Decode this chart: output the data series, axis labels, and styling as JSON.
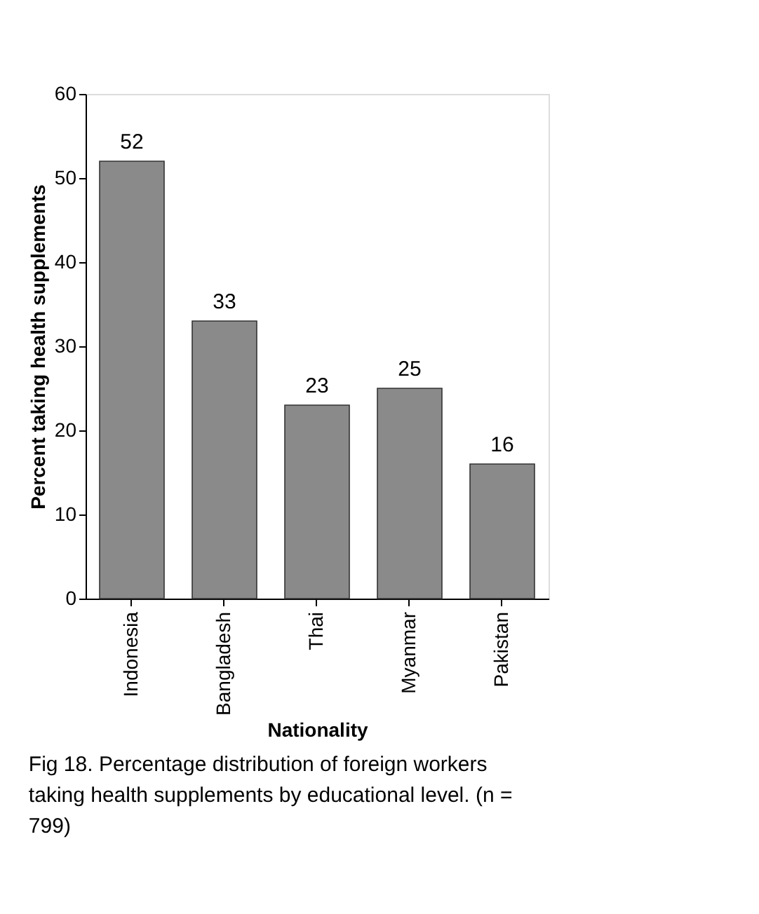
{
  "chart_data": {
    "type": "bar",
    "xlabel": "Nationality",
    "ylabel": "Percent taking health supplements",
    "categories": [
      "Indonesia",
      "Bangladesh",
      "Thai",
      "Myanmar",
      "Pakistan"
    ],
    "values": [
      52,
      33,
      23,
      25,
      16
    ],
    "color": "#8a8a8a",
    "ylim": [
      0,
      60
    ],
    "yticks": [
      0,
      10,
      20,
      30,
      40,
      50,
      60
    ],
    "grid": false,
    "data_labels": true,
    "annotations": [
      "Fig 18. Percentage distribution of foreign workers taking health supplements by educational level. (n = 799)"
    ]
  }
}
